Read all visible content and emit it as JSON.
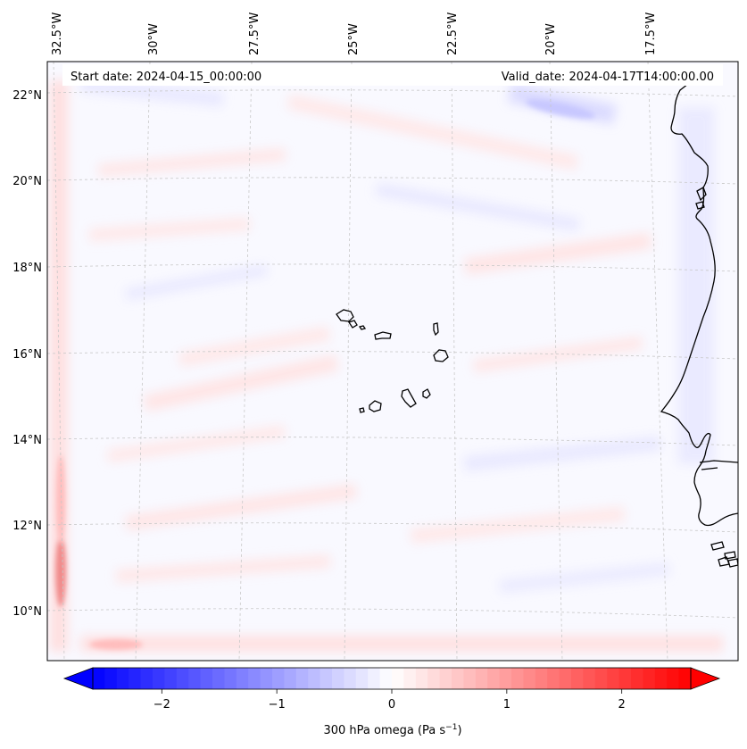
{
  "header": {
    "start_date": "Start date: 2024-04-15_00:00:00",
    "valid_date": "Valid_date: 2024-04-17T14:00:00.00"
  },
  "map": {
    "lon_labels": [
      "32.5°W",
      "30°W",
      "27.5°W",
      "25°W",
      "22.5°W",
      "20°W",
      "17.5°W"
    ],
    "lat_labels": [
      "22°N",
      "20°N",
      "18°N",
      "16°N",
      "14°N",
      "12°N",
      "10°N"
    ],
    "gridlines": "dashed"
  },
  "colorbar": {
    "ticks": [
      "−2",
      "−1",
      "0",
      "1",
      "2"
    ],
    "label_main": "300 hPa omega (Pa s",
    "label_sup": "−1",
    "label_end": ")",
    "vmin": -2.6,
    "vmax": 2.6,
    "colormap": "bwr",
    "low_color": "#0000ff",
    "mid_color": "#ffffff",
    "high_color": "#ff0000"
  }
}
